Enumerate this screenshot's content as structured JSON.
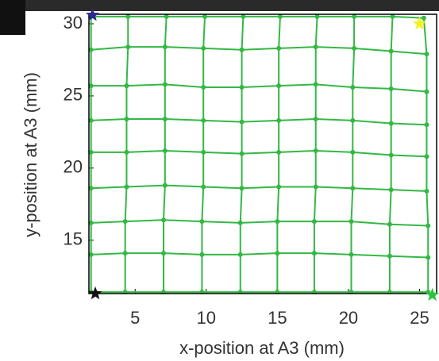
{
  "chart_data": {
    "type": "line",
    "xlabel": "x-position at A3 (mm)",
    "ylabel": "y-position at A3 (mm)",
    "xlim": [
      1.75,
      26.2
    ],
    "ylim": [
      11.3,
      30.66
    ],
    "xticks": [
      5,
      10,
      15,
      20,
      25
    ],
    "yticks": [
      15,
      20,
      25,
      30
    ],
    "color": "#33b844",
    "series": [
      {
        "x": [
          1.9,
          4.5,
          7.2,
          9.9,
          12.6,
          15.2,
          17.8,
          20.4,
          23.1,
          25.3
        ],
        "y": [
          30.5,
          30.5,
          30.5,
          30.5,
          30.5,
          30.5,
          30.5,
          30.5,
          30.5,
          30.4
        ]
      },
      {
        "x": [
          1.9,
          4.5,
          7.1,
          9.8,
          12.5,
          15.1,
          17.7,
          20.4,
          23.0,
          25.5
        ],
        "y": [
          28.2,
          28.4,
          28.4,
          28.3,
          28.2,
          28.3,
          28.4,
          28.3,
          28.1,
          27.9
        ]
      },
      {
        "x": [
          1.9,
          4.4,
          7.1,
          9.8,
          12.5,
          15.1,
          17.7,
          20.3,
          23.0,
          25.5
        ],
        "y": [
          25.7,
          25.7,
          25.8,
          25.6,
          25.6,
          25.7,
          25.8,
          25.6,
          25.5,
          25.3
        ]
      },
      {
        "x": [
          1.9,
          4.4,
          7.1,
          9.8,
          12.5,
          15.1,
          17.7,
          20.3,
          23.0,
          25.5
        ],
        "y": [
          23.3,
          23.4,
          23.4,
          23.3,
          23.2,
          23.3,
          23.4,
          23.3,
          23.1,
          23.0
        ]
      },
      {
        "x": [
          1.9,
          4.4,
          7.1,
          9.8,
          12.5,
          15.1,
          17.7,
          20.3,
          23.0,
          25.5
        ],
        "y": [
          21.1,
          21.1,
          21.2,
          21.1,
          21.0,
          21.1,
          21.2,
          21.1,
          20.9,
          20.8
        ]
      },
      {
        "x": [
          1.9,
          4.4,
          7.1,
          9.8,
          12.5,
          15.1,
          17.7,
          20.3,
          23.0,
          25.5
        ],
        "y": [
          18.6,
          18.7,
          18.8,
          18.7,
          18.6,
          18.7,
          18.7,
          18.6,
          18.5,
          18.4
        ]
      },
      {
        "x": [
          1.9,
          4.3,
          7.0,
          9.7,
          12.4,
          15.0,
          17.6,
          20.2,
          22.9,
          25.6
        ],
        "y": [
          16.2,
          16.3,
          16.4,
          16.3,
          16.2,
          16.3,
          16.3,
          16.3,
          16.1,
          16.0
        ]
      },
      {
        "x": [
          1.9,
          4.3,
          7.0,
          9.7,
          12.4,
          15.0,
          17.6,
          20.2,
          22.9,
          25.6
        ],
        "y": [
          14.0,
          14.1,
          14.1,
          14.0,
          14.0,
          14.1,
          14.1,
          14.0,
          13.9,
          13.8
        ]
      },
      {
        "x": [
          1.9,
          4.3,
          7.0,
          9.7,
          12.4,
          15.0,
          17.6,
          20.2,
          22.9,
          25.6
        ],
        "y": [
          11.4,
          11.4,
          11.4,
          11.4,
          11.4,
          11.4,
          11.4,
          11.4,
          11.4,
          11.4
        ]
      }
    ],
    "markers": [
      {
        "x": 2.0,
        "y": 30.6,
        "color": "#2b2b8f"
      },
      {
        "x": 25.0,
        "y": 30.0,
        "color": "#f2f21a"
      },
      {
        "x": 2.2,
        "y": 11.3,
        "color": "#111111"
      },
      {
        "x": 25.9,
        "y": 11.2,
        "color": "#2fc23f"
      }
    ]
  }
}
